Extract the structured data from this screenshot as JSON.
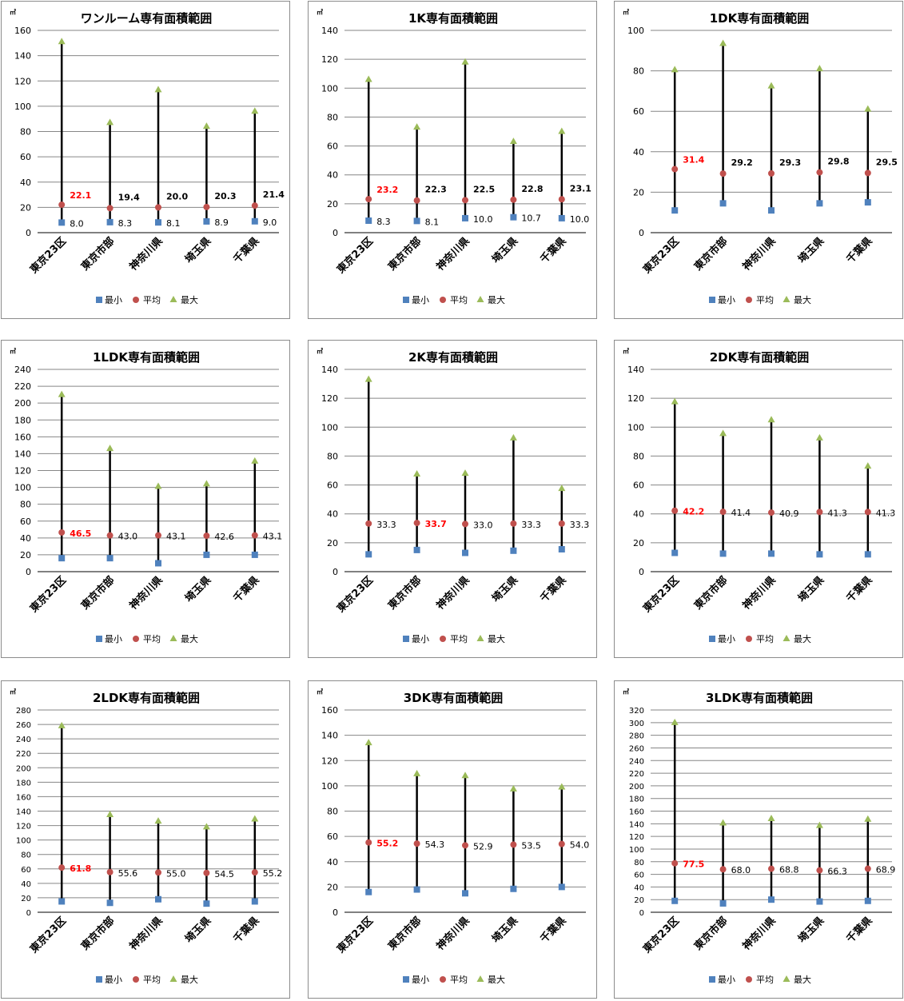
{
  "categories": [
    "東京23区",
    "東京市部",
    "神奈川県",
    "埼玉県",
    "千葉県"
  ],
  "legend": {
    "min": "最小",
    "avg": "平均",
    "max": "最大"
  },
  "unit": "㎡",
  "colors": {
    "min": "#4f81bd",
    "avg": "#c0504d",
    "max": "#9bbb59",
    "line": "#000000",
    "grid": "#868686",
    "highlight": "#ff0000",
    "text": "#000000"
  },
  "chart_data": [
    {
      "type": "scatter",
      "title": "ワンルーム専有面積範囲",
      "ylim": [
        0,
        160
      ],
      "ytick_step": 20,
      "categories": [
        "東京23区",
        "東京市部",
        "神奈川県",
        "埼玉県",
        "千葉県"
      ],
      "series": [
        {
          "name": "最小",
          "values": [
            8.0,
            8.3,
            8.1,
            8.9,
            9.0
          ]
        },
        {
          "name": "平均",
          "values": [
            22.1,
            19.4,
            20.0,
            20.3,
            21.4
          ]
        },
        {
          "name": "最大",
          "values": [
            151,
            87,
            113,
            84,
            96
          ]
        }
      ],
      "min_labels": [
        "8.0",
        "8.3",
        "8.1",
        "8.9",
        "9.0"
      ],
      "avg_labels": [
        "22.1",
        "19.4",
        "20.0",
        "20.3",
        "21.4"
      ],
      "avg_highlight": [
        0
      ],
      "avg_bold": true,
      "show_min_labels": true
    },
    {
      "type": "scatter",
      "title": "1K専有面積範囲",
      "ylim": [
        0,
        140
      ],
      "ytick_step": 20,
      "categories": [
        "東京23区",
        "東京市部",
        "神奈川県",
        "埼玉県",
        "千葉県"
      ],
      "series": [
        {
          "name": "最小",
          "values": [
            8.3,
            8.1,
            10.0,
            10.7,
            10.0
          ]
        },
        {
          "name": "平均",
          "values": [
            23.2,
            22.3,
            22.5,
            22.8,
            23.1
          ]
        },
        {
          "name": "最大",
          "values": [
            106,
            73,
            118,
            63,
            70
          ]
        }
      ],
      "min_labels": [
        "8.3",
        "8.1",
        "10.0",
        "10.7",
        "10.0"
      ],
      "avg_labels": [
        "23.2",
        "22.3",
        "22.5",
        "22.8",
        "23.1"
      ],
      "avg_highlight": [
        0
      ],
      "avg_bold": true,
      "show_min_labels": true
    },
    {
      "type": "scatter",
      "title": "1DK専有面積範囲",
      "ylim": [
        0,
        100
      ],
      "ytick_step": 20,
      "categories": [
        "東京23区",
        "東京市部",
        "神奈川県",
        "埼玉県",
        "千葉県"
      ],
      "series": [
        {
          "name": "最小",
          "values": [
            11,
            14.5,
            11,
            14.5,
            15
          ]
        },
        {
          "name": "平均",
          "values": [
            31.4,
            29.2,
            29.3,
            29.8,
            29.5
          ]
        },
        {
          "name": "最大",
          "values": [
            80.5,
            93.5,
            72.5,
            81,
            61
          ]
        }
      ],
      "min_labels": [],
      "avg_labels": [
        "31.4",
        "29.2",
        "29.3",
        "29.8",
        "29.5"
      ],
      "avg_highlight": [
        0
      ],
      "avg_bold": true,
      "show_min_labels": false
    },
    {
      "type": "scatter",
      "title": "1LDK専有面積範囲",
      "ylim": [
        0,
        240
      ],
      "ytick_step": 20,
      "categories": [
        "東京23区",
        "東京市部",
        "神奈川県",
        "埼玉県",
        "千葉県"
      ],
      "series": [
        {
          "name": "最小",
          "values": [
            16,
            16,
            10,
            20,
            20
          ]
        },
        {
          "name": "平均",
          "values": [
            46.5,
            43.0,
            43.1,
            42.6,
            43.1
          ]
        },
        {
          "name": "最大",
          "values": [
            210,
            146,
            101,
            104,
            131
          ]
        }
      ],
      "min_labels": [],
      "avg_labels": [
        "46.5",
        "43.0",
        "43.1",
        "42.6",
        "43.1"
      ],
      "avg_highlight": [
        0
      ],
      "avg_bold": false,
      "show_min_labels": false
    },
    {
      "type": "scatter",
      "title": "2K専有面積範囲",
      "ylim": [
        0,
        140
      ],
      "ytick_step": 20,
      "categories": [
        "東京23区",
        "東京市部",
        "神奈川県",
        "埼玉県",
        "千葉県"
      ],
      "series": [
        {
          "name": "最小",
          "values": [
            12,
            15,
            13,
            14.5,
            15.5
          ]
        },
        {
          "name": "平均",
          "values": [
            33.3,
            33.7,
            33.0,
            33.3,
            33.3
          ]
        },
        {
          "name": "最大",
          "values": [
            133,
            67.5,
            68,
            92.5,
            57.5
          ]
        }
      ],
      "min_labels": [],
      "avg_labels": [
        "33.3",
        "33.7",
        "33.0",
        "33.3",
        "33.3"
      ],
      "avg_highlight": [
        1
      ],
      "avg_bold": false,
      "show_min_labels": false
    },
    {
      "type": "scatter",
      "title": "2DK専有面積範囲",
      "ylim": [
        0,
        140
      ],
      "ytick_step": 20,
      "categories": [
        "東京23区",
        "東京市部",
        "神奈川県",
        "埼玉県",
        "千葉県"
      ],
      "series": [
        {
          "name": "最小",
          "values": [
            13,
            12.5,
            12.5,
            12,
            12
          ]
        },
        {
          "name": "平均",
          "values": [
            42.2,
            41.4,
            40.9,
            41.3,
            41.3
          ]
        },
        {
          "name": "最大",
          "values": [
            117.5,
            95.5,
            105,
            92.5,
            73
          ]
        }
      ],
      "min_labels": [],
      "avg_labels": [
        "42.2",
        "41.4",
        "40.9",
        "41.3",
        "41.3"
      ],
      "avg_highlight": [
        0
      ],
      "avg_bold": false,
      "show_min_labels": false
    },
    {
      "type": "scatter",
      "title": "2LDK専有面積範囲",
      "ylim": [
        0,
        280
      ],
      "ytick_step": 20,
      "categories": [
        "東京23区",
        "東京市部",
        "神奈川県",
        "埼玉県",
        "千葉県"
      ],
      "series": [
        {
          "name": "最小",
          "values": [
            15,
            13,
            18,
            12,
            15
          ]
        },
        {
          "name": "平均",
          "values": [
            61.8,
            55.6,
            55.0,
            54.5,
            55.2
          ]
        },
        {
          "name": "最大",
          "values": [
            258,
            135,
            126,
            118,
            129
          ]
        }
      ],
      "min_labels": [],
      "avg_labels": [
        "61.8",
        "55.6",
        "55.0",
        "54.5",
        "55.2"
      ],
      "avg_highlight": [
        0
      ],
      "avg_bold": false,
      "show_min_labels": false
    },
    {
      "type": "scatter",
      "title": "3DK専有面積範囲",
      "ylim": [
        0,
        160
      ],
      "ytick_step": 20,
      "categories": [
        "東京23区",
        "東京市部",
        "神奈川県",
        "埼玉県",
        "千葉県"
      ],
      "series": [
        {
          "name": "最小",
          "values": [
            16,
            18,
            15,
            18.5,
            20
          ]
        },
        {
          "name": "平均",
          "values": [
            55.2,
            54.3,
            52.9,
            53.5,
            54.0
          ]
        },
        {
          "name": "最大",
          "values": [
            134,
            109.5,
            108,
            97.5,
            99
          ]
        }
      ],
      "min_labels": [],
      "avg_labels": [
        "55.2",
        "54.3",
        "52.9",
        "53.5",
        "54.0"
      ],
      "avg_highlight": [
        0
      ],
      "avg_bold": false,
      "show_min_labels": false
    },
    {
      "type": "scatter",
      "title": "3LDK専有面積範囲",
      "ylim": [
        0,
        320
      ],
      "ytick_step": 20,
      "categories": [
        "東京23区",
        "東京市部",
        "神奈川県",
        "埼玉県",
        "千葉県"
      ],
      "series": [
        {
          "name": "最小",
          "values": [
            18,
            14,
            20,
            17,
            18
          ]
        },
        {
          "name": "平均",
          "values": [
            77.5,
            68.0,
            68.8,
            66.3,
            68.9
          ]
        },
        {
          "name": "最大",
          "values": [
            300,
            141,
            148,
            137,
            147
          ]
        }
      ],
      "min_labels": [],
      "avg_labels": [
        "77.5",
        "68.0",
        "68.8",
        "66.3",
        "68.9"
      ],
      "avg_highlight": [
        0
      ],
      "avg_bold": false,
      "show_min_labels": false
    }
  ]
}
